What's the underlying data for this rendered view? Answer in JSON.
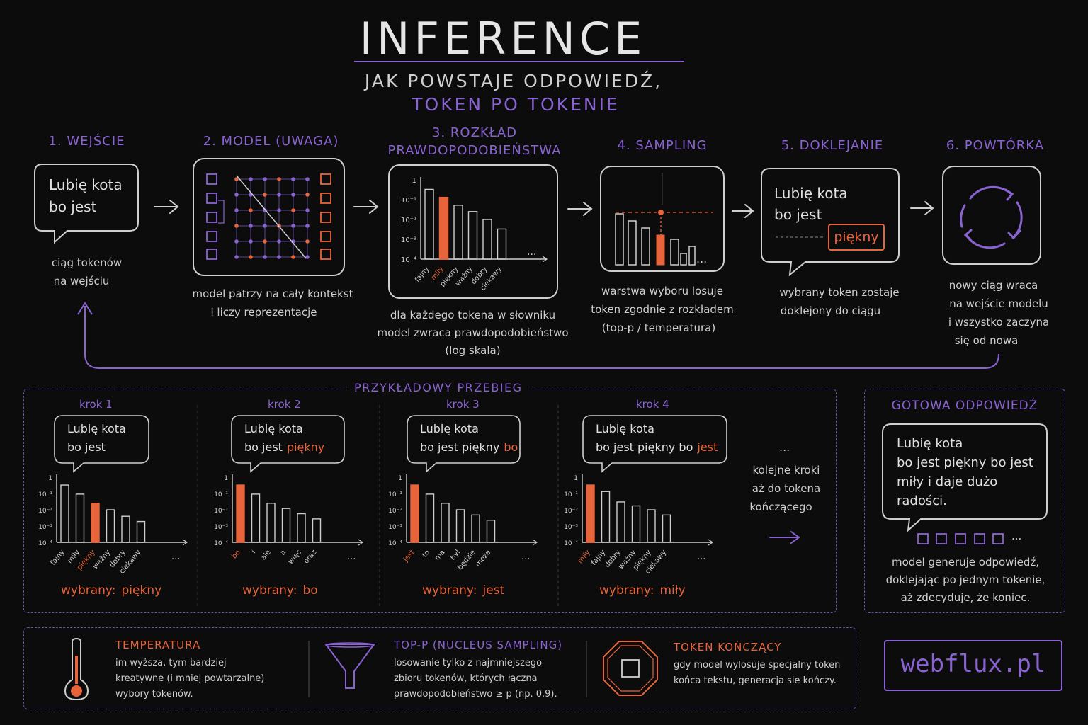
{
  "header": {
    "title": "INFERENCE",
    "subtitle_line1": "JAK POWSTAJE ODPOWIEDŹ,",
    "subtitle_line2": "TOKEN PO TOKENIE"
  },
  "steps": [
    {
      "title": "1. WEJŚCIE",
      "bubble_line1": "Lubię kota",
      "bubble_line2": "bo jest",
      "caption_line1": "ciąg tokenów",
      "caption_line2": "na wejściu"
    },
    {
      "title": "2. MODEL (UWAGA)",
      "caption_line1": "model patrzy na cały kontekst",
      "caption_line2": "i liczy reprezentacje"
    },
    {
      "title_line1": "3. ROZKŁAD",
      "title_line2": "PRAWDOPODOBIEŃSTWA",
      "y_ticks": [
        "1",
        "10⁻¹",
        "10⁻²",
        "10⁻³",
        "10⁻⁴"
      ],
      "tokens": [
        "fajny",
        "miły",
        "piękny",
        "ważny",
        "dobry",
        "ciekawy"
      ],
      "ellipsis": "...",
      "caption_line1": "dla każdego tokena w słowniku",
      "caption_line2": "model zwraca prawdopodobieństwo",
      "caption_line3": "(log skala)"
    },
    {
      "title": "4. SAMPLING",
      "ellipsis": "...",
      "caption_line1": "warstwa wyboru losuje",
      "caption_line2": "token zgodnie z rozkładem",
      "caption_line3": "(top-p / temperatura)"
    },
    {
      "title": "5. DOKLEJANIE",
      "bubble_line1": "Lubię kota",
      "bubble_line2": "bo jest",
      "appended": "piękny",
      "caption_line1": "wybrany token zostaje",
      "caption_line2": "doklejony do ciągu"
    },
    {
      "title": "6. POWTÓRKA",
      "caption_line1": "nowy ciąg wraca",
      "caption_line2": "na wejście modelu",
      "caption_line3": "i wszystko zaczyna",
      "caption_line4": "się od nowa"
    }
  ],
  "example": {
    "title": "PRZYKŁADOWY PRZEBIEG",
    "y_ticks": [
      "1",
      "10⁻¹",
      "10⁻²",
      "10⁻³",
      "10⁻⁴"
    ],
    "ellipsis": "...",
    "picked_prefix": "wybrany:",
    "runs": [
      {
        "label": "krok 1",
        "line1": "Lubię kota",
        "line2": "bo jest",
        "added": "",
        "tokens": [
          "fajny",
          "miły",
          "piękny",
          "ważny",
          "dobry",
          "ciekawy"
        ],
        "picked": "piękny"
      },
      {
        "label": "krok 2",
        "line1": "Lubię kota",
        "line2": "bo jest",
        "added": "piękny",
        "tokens": [
          "bo",
          "i",
          "ale",
          "a",
          "więc",
          "oraz"
        ],
        "picked": "bo"
      },
      {
        "label": "krok 3",
        "line1": "Lubię kota",
        "line2": "bo jest piękny",
        "added": "bo",
        "tokens": [
          "jest",
          "to",
          "ma",
          "był",
          "będzie",
          "może"
        ],
        "picked": "jest"
      },
      {
        "label": "krok 4",
        "line1": "Lubię kota",
        "line2": "bo jest piękny bo",
        "added": "jest",
        "tokens": [
          "miły",
          "fajny",
          "dobry",
          "ważny",
          "piękny",
          "ciekawy"
        ],
        "picked": "miły"
      }
    ],
    "more_dots": "...",
    "more_line1": "kolejne kroki",
    "more_line2": "aż do tokena",
    "more_line3": "kończącego"
  },
  "final": {
    "title": "GOTOWA ODPOWIEDŹ",
    "line1": "Lubię kota",
    "line2": "bo jest piękny bo jest",
    "line3": "miły i daje dużo",
    "line4": "radości.",
    "dots": "...",
    "caption_line1": "model generuje odpowiedź,",
    "caption_line2": "doklejając po jednym tokenie,",
    "caption_line3": "aż zdecyduje, że koniec."
  },
  "footer": {
    "temperature": {
      "title": "TEMPERATURA",
      "line1": "im wyższa, tym bardziej",
      "line2": "kreatywne (i mniej powtarzalne)",
      "line3": "wybory tokenów."
    },
    "topp": {
      "title": "TOP-P (NUCLEUS SAMPLING)",
      "line1": "losowanie tylko z najmniejszego",
      "line2": "zbioru tokenów, których łączna",
      "line3": "prawdopodobieństwo ≥ p (np. 0.9)."
    },
    "endtoken": {
      "title": "TOKEN KOŃCZĄCY",
      "line1": "gdy model wylosuje specjalny token",
      "line2": "końca tekstu, generacja się kończy."
    },
    "brand": "webflux.pl"
  },
  "colors": {
    "accent": "#8a63d2",
    "highlight": "#e8643a",
    "chalk": "#dcdcdc",
    "background": "#0c0c0d"
  },
  "icons": [
    "speech-bubble-icon",
    "attention-grid-icon",
    "bar-chart-icon",
    "cycle-arrows-icon",
    "thermometer-icon",
    "funnel-icon",
    "stop-octagon-icon",
    "arrow-right-icon"
  ]
}
